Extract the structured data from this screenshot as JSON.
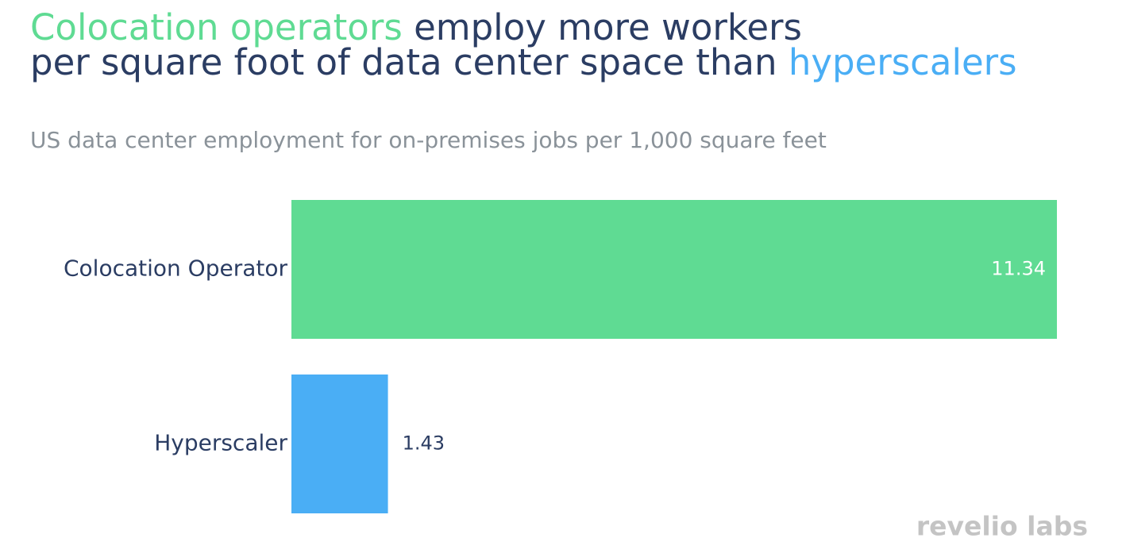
{
  "chart_data": {
    "type": "hbar",
    "title_lines": [
      [
        {
          "text": "Colocation operators",
          "color": "#5fdb93"
        },
        {
          "text": " employ more workers",
          "color": "#2b3d63"
        }
      ],
      [
        {
          "text": "per square foot of data center space than ",
          "color": "#2b3d63"
        },
        {
          "text": "hyperscalers",
          "color": "#4aaef5"
        }
      ]
    ],
    "subtitle": "US data center employment for on-premises jobs per 1,000 square feet",
    "categories": [
      "Colocation Operator",
      "Hyperscaler"
    ],
    "values": [
      11.34,
      1.43
    ],
    "colors": [
      "#5fdb93",
      "#4aaef5"
    ],
    "logo": "revelio labs"
  }
}
